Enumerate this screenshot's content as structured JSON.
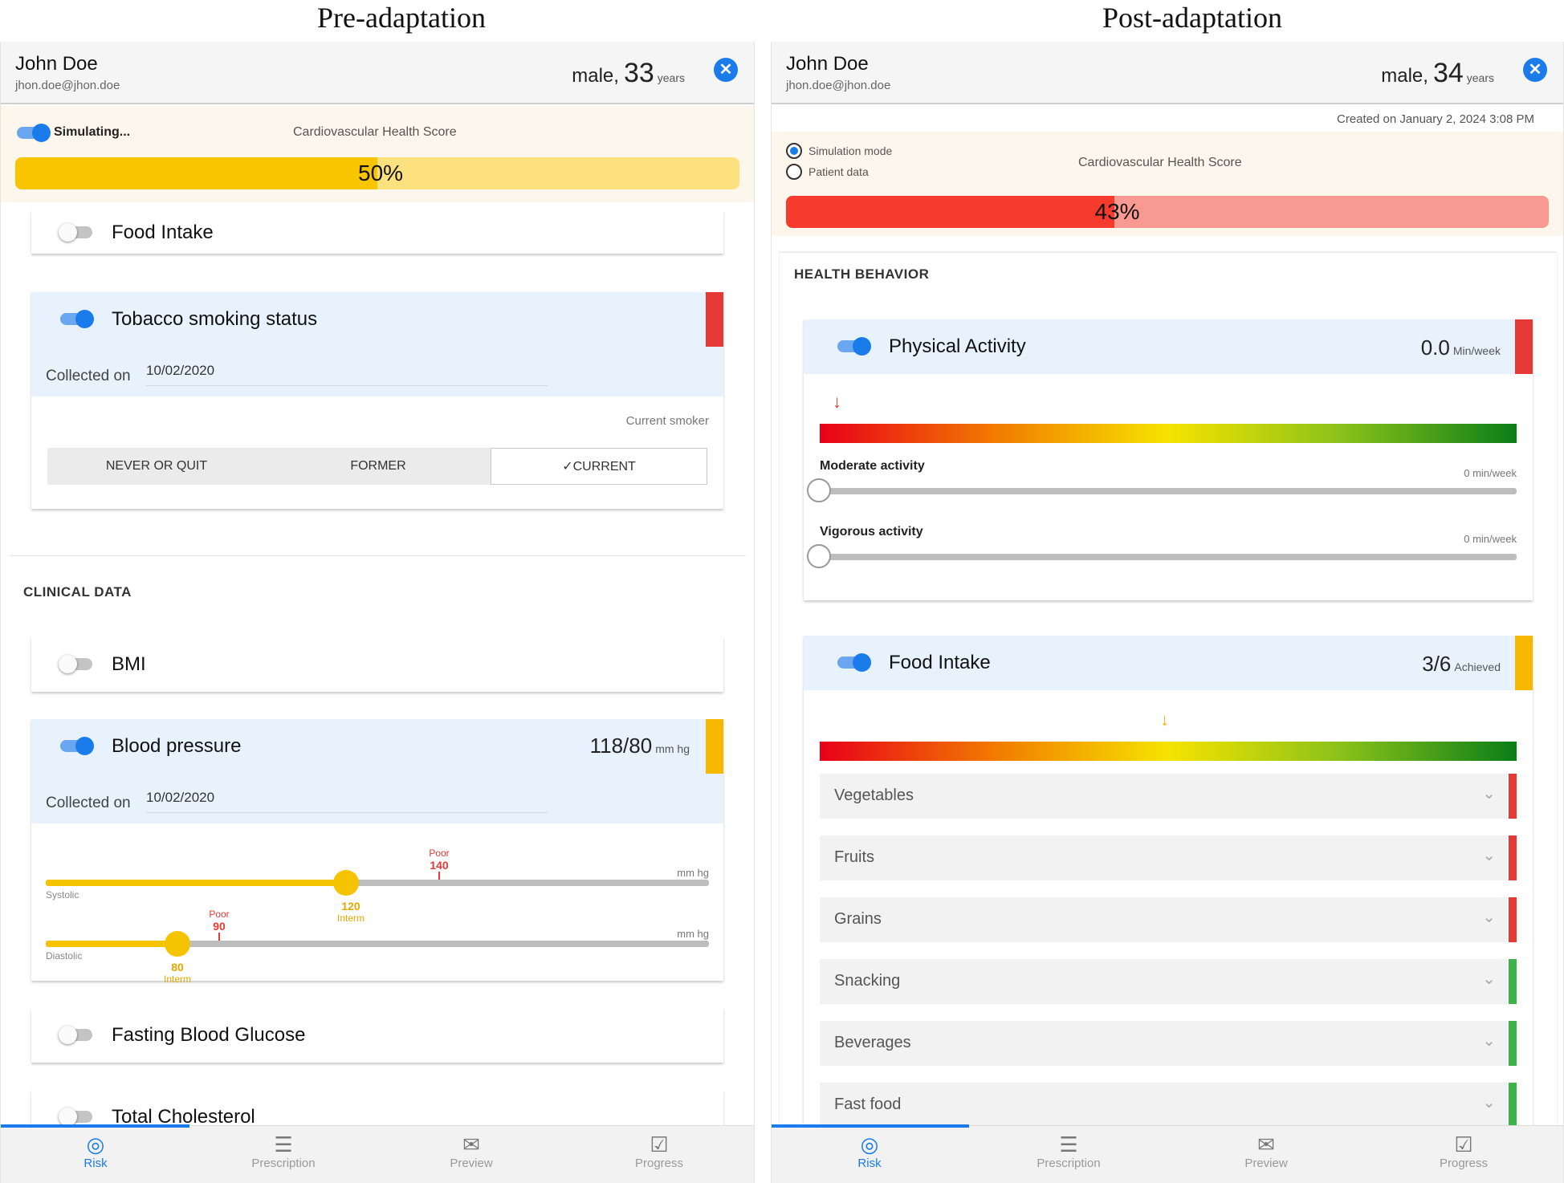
{
  "captions": {
    "left": "Pre-adaptation",
    "right": "Post-adaptation"
  },
  "pre": {
    "header": {
      "name": "John Doe",
      "email": "jhon.doe@jhon.doe",
      "sex": "male,",
      "age": "33",
      "age_unit": "years"
    },
    "score": {
      "toggle_label": "Simulating...",
      "title": "Cardiovascular Health Score",
      "value_text": "50%",
      "value": 50,
      "fill_color": "#f9c400",
      "track_color": "#fde17f"
    },
    "cards": {
      "food_intake": {
        "title": "Food Intake"
      },
      "tobacco": {
        "title": "Tobacco smoking status",
        "collected_label": "Collected on",
        "collected_date": "10/02/2020",
        "status": "Current smoker",
        "options": [
          "NEVER OR QUIT",
          "FORMER",
          "CURRENT"
        ],
        "selected": "CURRENT"
      },
      "bmi": {
        "title": "BMI"
      },
      "bp": {
        "title": "Blood pressure",
        "value": "118/80",
        "unit": "mm hg",
        "collected_label": "Collected on",
        "collected_date": "10/02/2020",
        "systolic": {
          "label": "Systolic",
          "unit": "mm hg",
          "value": 120,
          "value_label": "Interm",
          "poor_label": "Poor",
          "poor_value": 140
        },
        "diastolic": {
          "label": "Diastolic",
          "unit": "mm hg",
          "value": 80,
          "value_label": "Interm",
          "poor_label": "Poor",
          "poor_value": 90
        }
      },
      "glucose": {
        "title": "Fasting Blood Glucose"
      },
      "cholesterol": {
        "title": "Total Cholesterol"
      }
    },
    "sections": {
      "clinical": "CLINICAL DATA"
    },
    "flags": {
      "tobacco": "#e53935",
      "bp": "#f6b800"
    }
  },
  "post": {
    "header": {
      "name": "John Doe",
      "email": "jhon.doe@jhon.doe",
      "sex": "male,",
      "age": "34",
      "age_unit": "years",
      "created": "Created on January 2, 2024 3:08 PM"
    },
    "score": {
      "modes": [
        "Simulation mode",
        "Patient data"
      ],
      "selected_mode": "Simulation mode",
      "title": "Cardiovascular Health Score",
      "value_text": "43%",
      "value": 43,
      "fill_color": "#f53a2e",
      "track_color": "#f89a91"
    },
    "sections": {
      "behavior": "HEALTH BEHAVIOR"
    },
    "physical": {
      "title": "Physical Activity",
      "value": "0.0",
      "unit": "Min/week",
      "flag": "#e53935",
      "moderate": {
        "label": "Moderate activity",
        "unit": "0 min/week",
        "value": 0
      },
      "vigorous": {
        "label": "Vigorous activity",
        "unit": "0 min/week",
        "value": 0
      }
    },
    "food": {
      "title": "Food Intake",
      "value": "3/6",
      "unit": "Achieved",
      "flag": "#f6b800",
      "items": [
        {
          "label": "Vegetables",
          "flag": "#e53935"
        },
        {
          "label": "Fruits",
          "flag": "#e53935"
        },
        {
          "label": "Grains",
          "flag": "#e53935"
        },
        {
          "label": "Snacking",
          "flag": "#3bb54a"
        },
        {
          "label": "Beverages",
          "flag": "#3bb54a"
        },
        {
          "label": "Fast food",
          "flag": "#3bb54a"
        }
      ]
    }
  },
  "nav": {
    "items": [
      {
        "label": "Risk",
        "icon": "gauge-icon"
      },
      {
        "label": "Prescription",
        "icon": "list-icon"
      },
      {
        "label": "Preview",
        "icon": "mail-icon"
      },
      {
        "label": "Progress",
        "icon": "checklist-icon"
      }
    ],
    "active": "Risk"
  }
}
